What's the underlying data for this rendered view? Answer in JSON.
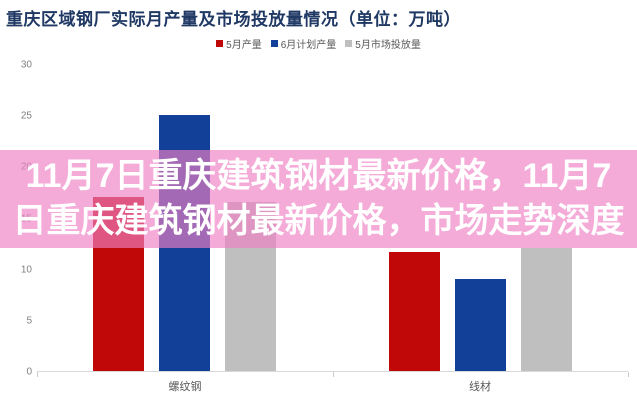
{
  "chart_data": {
    "type": "bar",
    "title": "重庆区域钢厂实际月产量及市场投放量情况（单位：万吨）",
    "categories": [
      "螺纹钢",
      "线材"
    ],
    "series": [
      {
        "name": "5月产量",
        "color": "#C00808",
        "values": [
          17,
          11.6
        ]
      },
      {
        "name": "6月计划产量",
        "color": "#123F97",
        "values": [
          25,
          9
        ]
      },
      {
        "name": "5月市场投放量",
        "color": "#BFBFBF",
        "values": [
          16.5,
          12
        ]
      }
    ],
    "ylim": [
      0,
      30
    ],
    "yticks": [
      0,
      5,
      10,
      15,
      20,
      25,
      30
    ],
    "grid": false,
    "legend_position": "top-center",
    "axis_color": "#D9D9D9",
    "tick_label_color": "#808080",
    "category_label_color": "#595959"
  },
  "overlay_banner": {
    "lines": [
      "11月7日重庆建筑钢材最新价格，11月7",
      "日重庆建筑钢材最新价格，市场走势深度"
    ],
    "background": "#EE80C4",
    "opacity": 0.66,
    "text_color": "#FFFFFF"
  },
  "colors": {
    "title": "#1F3864",
    "background": "#FFFFFF"
  }
}
